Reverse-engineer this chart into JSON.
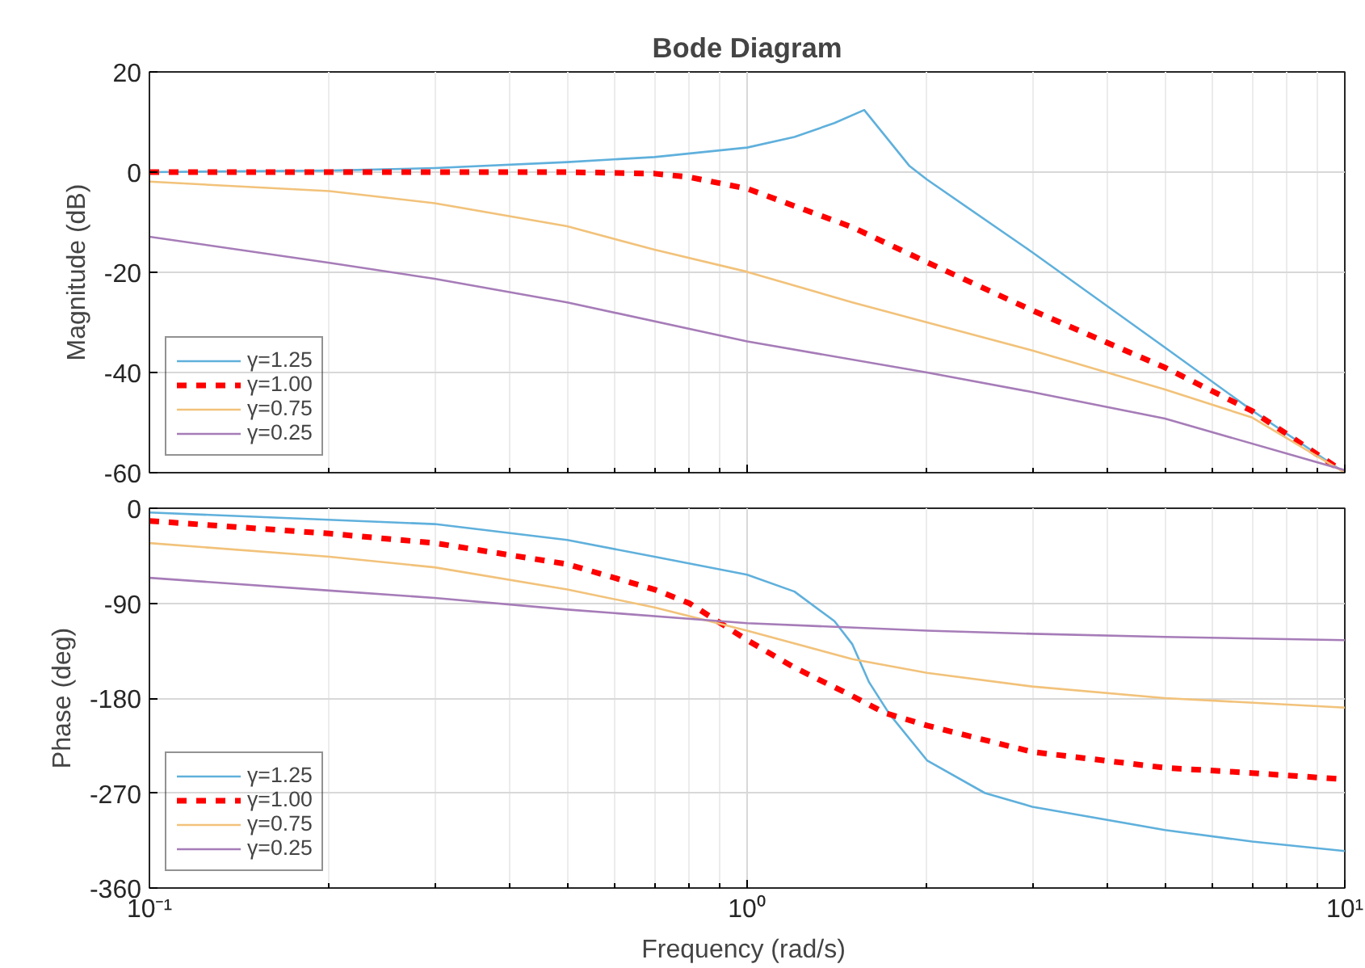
{
  "chart_data": [
    {
      "type": "line",
      "title": "Bode Diagram",
      "ylabel": "Magnitude (dB)",
      "xlim": [
        0.1,
        10
      ],
      "ylim": [
        -60,
        20
      ],
      "log": "x",
      "grid": true,
      "legend": "bottom left",
      "tick_labels": "y",
      "xticks": [
        {
          "value": 0.1,
          "label": null
        },
        {
          "value": 1,
          "label": null
        },
        {
          "value": 10,
          "label": null
        }
      ],
      "yticks": [
        -60,
        -40,
        -20,
        0,
        20
      ],
      "series": [
        {
          "name": "γ=1.25",
          "color": "#5fb0dc",
          "line_style": "solid",
          "x": [
            0.1,
            0.2,
            0.3,
            0.5,
            0.7,
            1,
            1.2,
            1.4,
            1.57,
            1.87,
            2,
            3,
            5,
            7,
            10
          ],
          "values": [
            0,
            0.3,
            0.8,
            2,
            3,
            4.9,
            7,
            9.8,
            12.4,
            1.2,
            -1.5,
            -16,
            -35,
            -47.6,
            -60
          ]
        },
        {
          "name": "γ=1.00",
          "color": "#ff0000",
          "line_style": "dashed",
          "x": [
            0.1,
            0.2,
            0.3,
            0.5,
            0.7,
            0.8,
            1,
            1.5,
            2,
            3,
            5,
            7,
            10
          ],
          "values": [
            0,
            0,
            0,
            0,
            -0.3,
            -1,
            -3.3,
            -11,
            -18,
            -27.6,
            -39,
            -47.7,
            -60
          ]
        },
        {
          "name": "γ=0.75",
          "color": "#f2c27a",
          "line_style": "solid",
          "x": [
            0.1,
            0.2,
            0.3,
            0.5,
            0.7,
            1,
            1.5,
            2,
            3,
            5,
            7,
            10
          ],
          "values": [
            -1.9,
            -3.8,
            -6.2,
            -10.8,
            -15.5,
            -19.9,
            -26,
            -30,
            -35.6,
            -43.4,
            -49,
            -60
          ]
        },
        {
          "name": "γ=0.25",
          "color": "#a67cb8",
          "line_style": "solid",
          "x": [
            0.1,
            0.2,
            0.3,
            0.5,
            1,
            2,
            3,
            5,
            10
          ],
          "values": [
            -12.9,
            -18.1,
            -21.3,
            -26,
            -33.8,
            -40,
            -43.9,
            -49.2,
            -59.5
          ]
        }
      ]
    },
    {
      "type": "line",
      "xlabel": "Frequency  (rad/s)",
      "ylabel": "Phase (deg)",
      "xlim": [
        0.1,
        10
      ],
      "ylim": [
        -360,
        0
      ],
      "log": "x",
      "grid": true,
      "legend": "bottom left",
      "xticks": [
        {
          "value": 0.1,
          "label": "10⁻¹"
        },
        {
          "value": 1,
          "label": "10⁰"
        },
        {
          "value": 10,
          "label": "10¹"
        }
      ],
      "yticks": [
        -360,
        -270,
        -180,
        -90,
        0
      ],
      "series": [
        {
          "name": "γ=1.25",
          "color": "#5fb0dc",
          "line_style": "solid",
          "x": [
            0.1,
            0.3,
            0.5,
            0.7,
            1,
            1.2,
            1.4,
            1.5,
            1.6,
            1.73,
            2,
            2.5,
            3,
            5,
            7,
            10
          ],
          "values": [
            -4,
            -15,
            -30,
            -46,
            -63,
            -79,
            -107,
            -129,
            -165,
            -195,
            -239,
            -270,
            -283,
            -305,
            -316,
            -325
          ]
        },
        {
          "name": "γ=1.00",
          "color": "#ff0000",
          "line_style": "dashed",
          "x": [
            0.1,
            0.2,
            0.3,
            0.5,
            0.7,
            0.8,
            1,
            1.2,
            1.5,
            1.7,
            2,
            3,
            5,
            7,
            10
          ],
          "values": [
            -12,
            -24,
            -33,
            -53,
            -77,
            -90,
            -125,
            -151,
            -178,
            -194,
            -206,
            -231,
            -246,
            -251,
            -257
          ]
        },
        {
          "name": "γ=0.75",
          "color": "#f2c27a",
          "line_style": "solid",
          "x": [
            0.1,
            0.2,
            0.3,
            0.5,
            0.7,
            1,
            1.5,
            2,
            3,
            5,
            10
          ],
          "values": [
            -33,
            -46,
            -56,
            -77,
            -94,
            -116,
            -143,
            -156,
            -169,
            -180,
            -189
          ]
        },
        {
          "name": "γ=0.25",
          "color": "#a67cb8",
          "line_style": "solid",
          "x": [
            0.1,
            0.2,
            0.3,
            0.5,
            1,
            2,
            3,
            5,
            10
          ],
          "values": [
            -66,
            -78,
            -85,
            -96,
            -109,
            -116,
            -119,
            -122,
            -125
          ]
        }
      ]
    }
  ]
}
